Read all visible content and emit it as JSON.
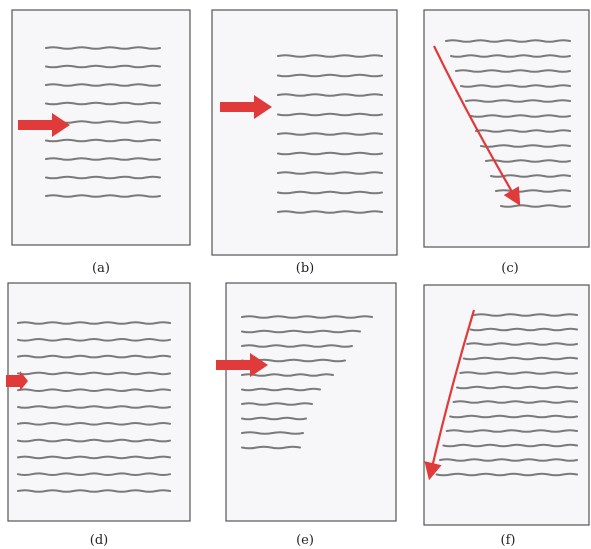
{
  "figure": {
    "panels": [
      {
        "label": "(a)",
        "line_count": 9,
        "indent_style": "uniform",
        "marker": "horizontal-arrow",
        "marker_row": 5
      },
      {
        "label": "(b)",
        "line_count": 9,
        "indent_style": "uniform",
        "marker": "horizontal-arrow",
        "marker_row": 3
      },
      {
        "label": "(c)",
        "line_count": 12,
        "indent_style": "stepped-right",
        "marker": "diagonal-arrow-down-right"
      },
      {
        "label": "(d)",
        "line_count": 11,
        "indent_style": "full-width",
        "marker": "horizontal-arrow",
        "marker_row": 4
      },
      {
        "label": "(e)",
        "line_count": 10,
        "indent_style": "shrinking-right",
        "marker": "horizontal-arrow",
        "marker_row": 3
      },
      {
        "label": "(f)",
        "line_count": 12,
        "indent_style": "slanted-left",
        "marker": "diagonal-arrow-down-left"
      }
    ],
    "colors": {
      "line": "#7a7a7a",
      "arrow": "#e03a3a",
      "frame": "#555555",
      "paper": "#f7f6f9"
    }
  }
}
